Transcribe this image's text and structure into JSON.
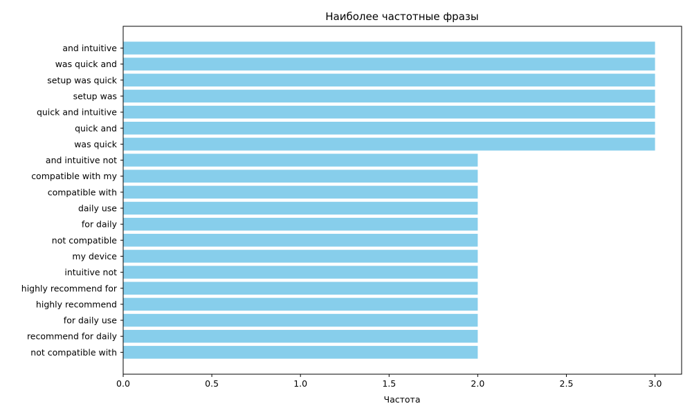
{
  "chart_data": {
    "type": "bar",
    "orientation": "horizontal",
    "title": "Наиболее частотные фразы",
    "xlabel": "Частота",
    "ylabel": "",
    "xlim": [
      0,
      3.15
    ],
    "xticks": [
      "0.0",
      "0.5",
      "1.0",
      "1.5",
      "2.0",
      "2.5",
      "3.0"
    ],
    "grid": false,
    "bar_color": "#87CEEB",
    "categories": [
      "and intuitive",
      "was quick and",
      "setup was quick",
      "setup was",
      "quick and intuitive",
      "quick and",
      "was quick",
      "and intuitive not",
      "compatible with my",
      "compatible with",
      "daily use",
      "for daily",
      "not compatible",
      "my device",
      "intuitive not",
      "highly recommend for",
      "highly recommend",
      "for daily use",
      "recommend for daily",
      "not compatible with"
    ],
    "values": [
      3,
      3,
      3,
      3,
      3,
      3,
      3,
      2,
      2,
      2,
      2,
      2,
      2,
      2,
      2,
      2,
      2,
      2,
      2,
      2
    ]
  }
}
